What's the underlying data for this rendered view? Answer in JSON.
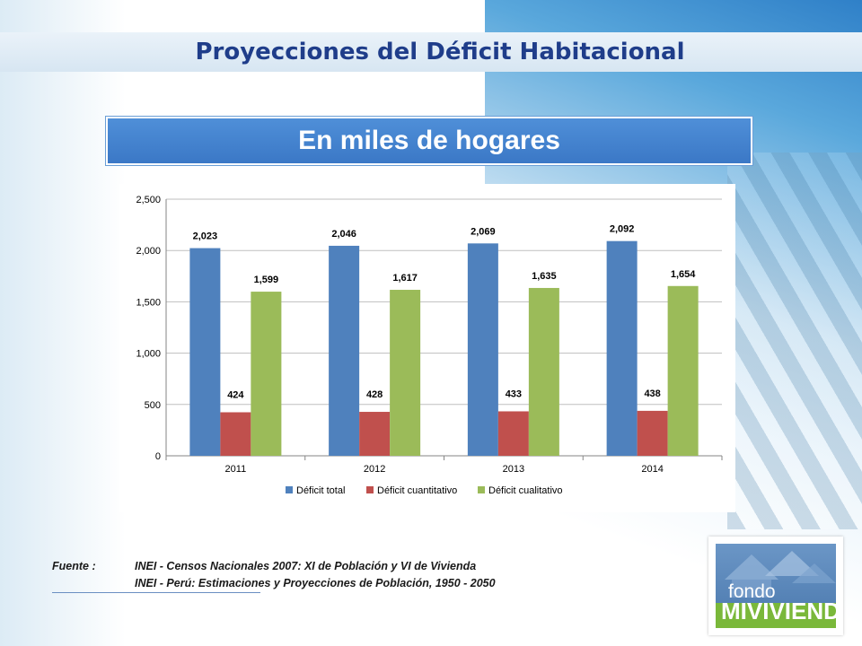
{
  "slide": {
    "title": "Proyecciones del Déficit Habitacional",
    "subtitle": "En miles de hogares"
  },
  "source": {
    "label": "Fuente :",
    "line1": "INEI - Censos Nacionales 2007: XI de Población y VI de Vivienda",
    "line2": "INEI - Perú: Estimaciones y Proyecciones de Población, 1950 - 2050"
  },
  "logo": {
    "line1": "fondo",
    "line2": "MIVIVIENDA"
  },
  "colors": {
    "title": "#1f3d8a",
    "subtitle_bg": "#3b78c6",
    "series": [
      "#4f81bd",
      "#c0504d",
      "#9bbb59"
    ]
  },
  "chart_data": {
    "type": "bar",
    "categories": [
      "2011",
      "2012",
      "2013",
      "2014"
    ],
    "series": [
      {
        "name": "Déficit total",
        "values": [
          2023,
          2046,
          2069,
          2092
        ],
        "labels": [
          "2,023",
          "2,046",
          "2,069",
          "2,092"
        ]
      },
      {
        "name": "Déficit cuantitativo",
        "values": [
          424,
          428,
          433,
          438
        ],
        "labels": [
          "424",
          "428",
          "433",
          "438"
        ]
      },
      {
        "name": "Déficit cualitativo",
        "values": [
          1599,
          1617,
          1635,
          1654
        ],
        "labels": [
          "1,599",
          "1,617",
          "1,635",
          "1,654"
        ]
      }
    ],
    "yticks": [
      0,
      500,
      1000,
      1500,
      2000,
      2500
    ],
    "ytick_labels": [
      "0",
      "500",
      "1,000",
      "1,500",
      "2,000",
      "2,500"
    ],
    "ylim": [
      0,
      2500
    ],
    "grid": true,
    "legend_position": "bottom"
  }
}
